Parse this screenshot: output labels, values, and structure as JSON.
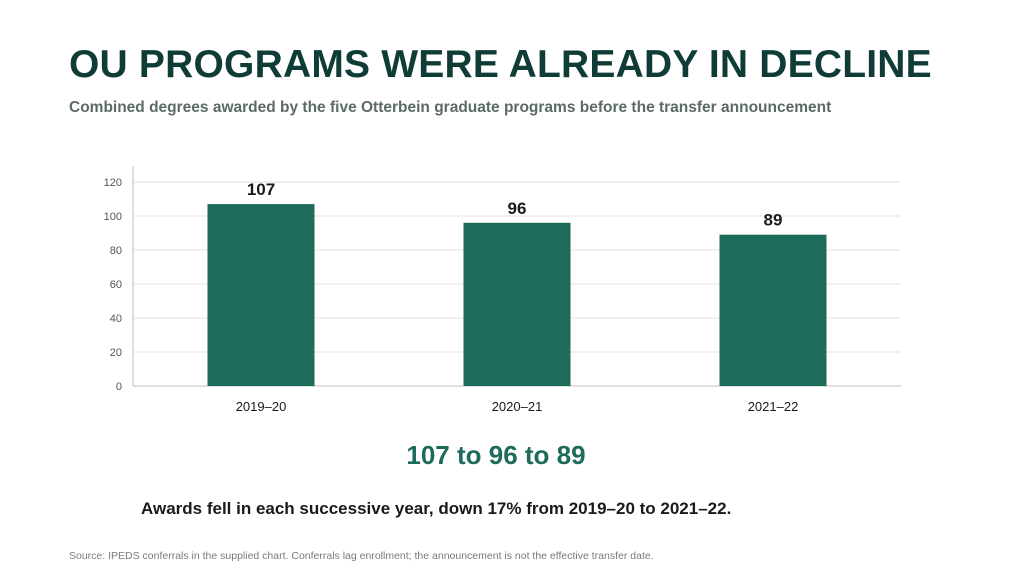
{
  "slide": {
    "title": "OU PROGRAMS WERE ALREADY IN DECLINE",
    "subtitle": "Combined degrees awarded by the five Otterbein graduate programs before the transfer announcement",
    "callout": "107 to 96 to 89",
    "note": "Awards fell in each successive year, down 17% from 2019–20 to 2021–22.",
    "source": "Source: IPEDS conferrals in the supplied chart. Conferrals lag enrollment; the announcement is not the effective transfer date."
  },
  "colors": {
    "bar": "#1d6b5a",
    "title": "#0f3c37",
    "callout": "#1d6b5a",
    "gridline": "#e2e2e2",
    "tick_label": "#555555"
  },
  "chart_data": {
    "type": "bar",
    "categories": [
      "2019–20",
      "2020–21",
      "2021–22"
    ],
    "values": [
      107,
      96,
      89
    ],
    "data_labels": [
      "107",
      "96",
      "89"
    ],
    "title": "",
    "xlabel": "",
    "ylabel": "",
    "ylim": [
      0,
      120
    ],
    "yticks": [
      0,
      20,
      40,
      60,
      80,
      100,
      120
    ],
    "grid": true,
    "legend": "none"
  }
}
